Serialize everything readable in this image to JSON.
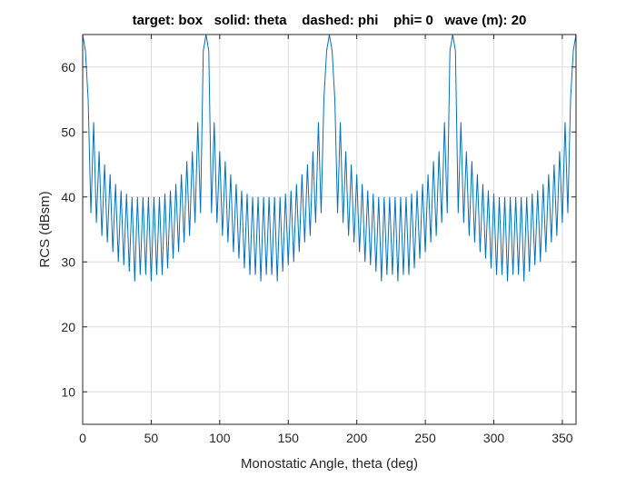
{
  "chart_data": {
    "type": "line",
    "title": "target: box   solid: theta    dashed: phi    phi= 0   wave (m): 20",
    "xlabel": "Monostatic Angle, theta (deg)",
    "ylabel": "RCS (dBsm)",
    "xlim": [
      0,
      360
    ],
    "ylim": [
      5,
      65
    ],
    "xticks": [
      0,
      50,
      100,
      150,
      200,
      250,
      300,
      350
    ],
    "yticks": [
      10,
      20,
      30,
      40,
      50,
      60
    ],
    "grid": true,
    "legend": "none",
    "series": [
      {
        "style": "solid",
        "color": "#0072BD",
        "x": [
          0,
          2,
          4,
          6,
          8,
          10,
          12,
          14,
          16,
          18,
          20,
          22,
          24,
          26,
          28,
          30,
          32,
          34,
          36,
          38,
          40,
          42,
          44,
          46,
          48,
          50,
          52,
          54,
          56,
          58,
          60,
          62,
          64,
          66,
          68,
          70,
          72,
          74,
          76,
          78,
          80,
          82,
          84,
          86,
          88,
          90
        ],
        "y": [
          65,
          62.5,
          55,
          37.5,
          51.5,
          36,
          47,
          34,
          45,
          33,
          43.5,
          31.5,
          42,
          30,
          41,
          29.5,
          40.5,
          28.5,
          40,
          27,
          40,
          28,
          40,
          28,
          40,
          27,
          40,
          28,
          40,
          28,
          40.5,
          29,
          41,
          30.5,
          42,
          31.5,
          43.5,
          33,
          45.5,
          34,
          47,
          36,
          51.5,
          37.5,
          62.5,
          65
        ]
      },
      {
        "style": "dashed",
        "color": "#D95319",
        "x": [
          0,
          360
        ],
        "y": [
          5,
          5
        ]
      }
    ]
  }
}
